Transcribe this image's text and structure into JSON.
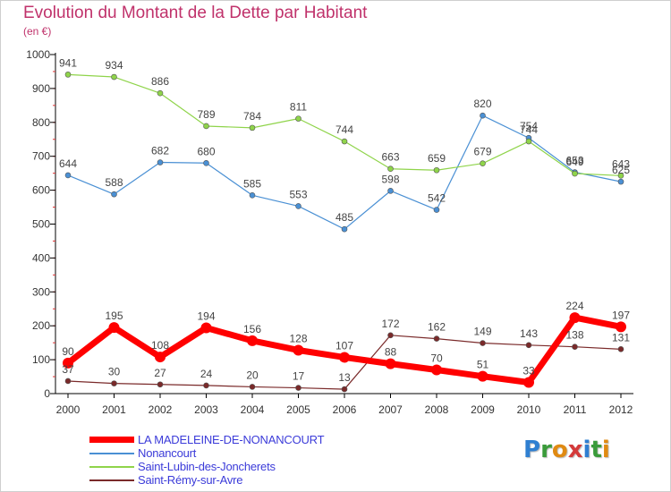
{
  "title": "Evolution du Montant de la Dette par Habitant",
  "subtitle": "(en €)",
  "logo": {
    "text": "Proxiti",
    "letters": [
      "P",
      "r",
      "o",
      "x",
      "i",
      "t",
      "i"
    ],
    "colors": [
      "#2f7fd1",
      "#3a9b3a",
      "#e08a12",
      "#d43a3a",
      "#2f7fd1",
      "#3a9b3a",
      "#e08a12"
    ]
  },
  "chart_data": {
    "type": "line",
    "x": [
      "2000",
      "2001",
      "2002",
      "2003",
      "2004",
      "2005",
      "2006",
      "2007",
      "2008",
      "2009",
      "2010",
      "2011",
      "2012"
    ],
    "yticks": [
      "0",
      "100",
      "200",
      "300",
      "400",
      "500",
      "600",
      "700",
      "800",
      "900",
      "1000"
    ],
    "ylim": [
      0,
      1000
    ],
    "grid": false,
    "legend_position": "bottom-left",
    "series": [
      {
        "name": "LA MADELEINE-DE-NONANCOURT",
        "color": "#ff0000",
        "values": [
          90,
          195,
          108,
          194,
          156,
          128,
          107,
          88,
          70,
          51,
          33,
          224,
          197
        ]
      },
      {
        "name": "Nonancourt",
        "color": "#4a90d4",
        "values": [
          644,
          588,
          682,
          680,
          585,
          553,
          485,
          598,
          542,
          820,
          754,
          653,
          625
        ]
      },
      {
        "name": "Saint-Lubin-des-Joncherets",
        "color": "#8fd44a",
        "values": [
          941,
          934,
          886,
          789,
          784,
          811,
          744,
          663,
          659,
          679,
          744,
          649,
          643
        ]
      },
      {
        "name": "Saint-Rémy-sur-Avre",
        "color": "#7a2a2a",
        "values": [
          37,
          30,
          27,
          24,
          20,
          17,
          13,
          172,
          162,
          149,
          143,
          138,
          131
        ]
      }
    ]
  }
}
